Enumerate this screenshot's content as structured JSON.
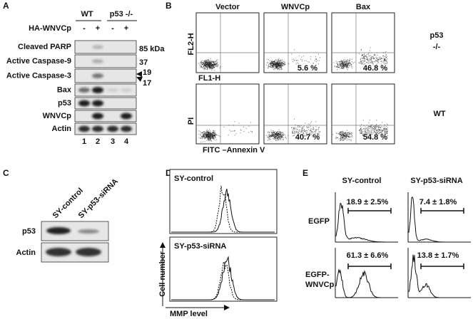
{
  "panel_a": {
    "label": "A",
    "groups": [
      "WT",
      "p53 -/-"
    ],
    "treatment": "HA-WNVCp",
    "signs": [
      "-",
      "+",
      "-",
      "+"
    ],
    "rows": [
      "Cleaved PARP",
      "Active Caspase-9",
      "Active Caspase-3",
      "Bax",
      "p53",
      "WNVCp",
      "Actin"
    ],
    "sizes": [
      "85 kDa",
      "37",
      "19",
      "17"
    ],
    "lanes": [
      "1",
      "2",
      "3",
      "4"
    ]
  },
  "panel_b": {
    "label": "B",
    "columns": [
      "Vector",
      "WNVCp",
      "Bax"
    ],
    "row_labels": [
      [
        "p53",
        "-/-"
      ],
      [
        "WT"
      ]
    ],
    "y_labels": [
      "FL2-H",
      "PI"
    ],
    "x_labels": [
      "FL1-H",
      "FITC –Annexin V"
    ],
    "top_row_percentages": [
      "5.6 %",
      "46.8 %"
    ],
    "bottom_row_percentages": [
      "40.7 %",
      "54.8 %"
    ]
  },
  "panel_c": {
    "label": "C",
    "columns": [
      "SY-control",
      "SY-p53-siRNA"
    ],
    "rows": [
      "p53",
      "Actin"
    ]
  },
  "panel_d": {
    "label": "D",
    "plots": [
      "SY-control",
      "SY-p53-siRNA"
    ],
    "y_label": "Cell number",
    "x_label": "MMP level"
  },
  "panel_e": {
    "label": "E",
    "columns": [
      "SY-control",
      "SY-p53-siRNA"
    ],
    "rows": [
      [
        "EGFP"
      ],
      [
        "EGFP-",
        "WNVCp"
      ]
    ],
    "values": [
      [
        "18.9 ± 2.5%",
        "7.4 ± 1.8%"
      ],
      [
        "61.3 ± 6.6%",
        "13.8 ± 1.7%"
      ]
    ]
  }
}
